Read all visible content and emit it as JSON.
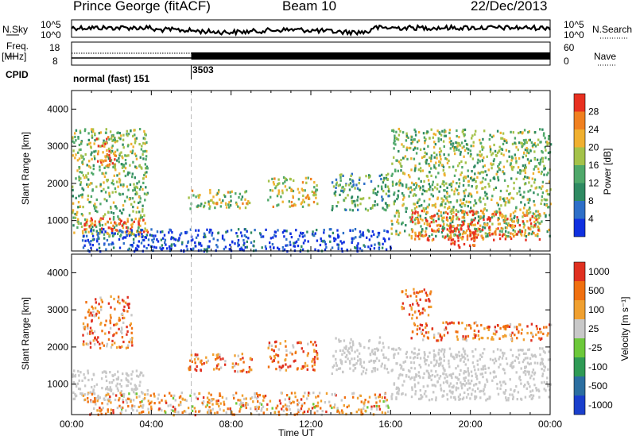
{
  "header": {
    "station": "Prince George (fitACF)",
    "beam": "Beam 10",
    "date": "22/Dec/2013"
  },
  "aux": {
    "nsky_label": "N.Sky",
    "nsky_ticks": [
      "10^5",
      "10^0"
    ],
    "nsearch_label": "N.Search",
    "freq_label": "Freq.",
    "freq_unit": "[MHz]",
    "freq_ticks": [
      "18",
      "8"
    ],
    "nave_label": "Nave",
    "nave_ticks": [
      "60",
      "0"
    ],
    "cpid_label": "CPID",
    "cpid_modes": [
      {
        "name": "normal (fast) 151",
        "start": "00:00",
        "end": "06:00"
      },
      {
        "name": "3503",
        "start": "06:00",
        "end": "24:00"
      }
    ]
  },
  "chart_data": [
    {
      "type": "heatmap",
      "title": "",
      "xlabel": "Time UT",
      "ylabel": "Slant Range [km]",
      "xlim": [
        0,
        24
      ],
      "ylim": [
        180,
        4500
      ],
      "x_ticks": [
        "00:00",
        "04:00",
        "08:00",
        "12:00",
        "16:00",
        "20:00",
        "00:00"
      ],
      "y_ticks": [
        1000,
        2000,
        3000,
        4000
      ],
      "colorbar": {
        "label": "Power [dB]",
        "ticks": [
          4,
          8,
          12,
          16,
          20,
          24,
          28
        ],
        "colors": [
          "#1030e0",
          "#2e6fc8",
          "#2f8a62",
          "#4fa86a",
          "#a4c24a",
          "#f0b030",
          "#f08020",
          "#e83020"
        ]
      },
      "echo_regions": [
        {
          "t0": 0.0,
          "t1": 3.8,
          "r0": 600,
          "r1": 3500,
          "level": 0.5
        },
        {
          "t0": 0.6,
          "t1": 3.8,
          "r0": 700,
          "r1": 1100,
          "level": 0.9
        },
        {
          "t0": 1.2,
          "t1": 2.2,
          "r0": 2500,
          "r1": 3300,
          "level": 0.8
        },
        {
          "t0": 0.5,
          "t1": 16.0,
          "r0": 200,
          "r1": 800,
          "level": 0.1
        },
        {
          "t0": 5.8,
          "t1": 9.0,
          "r0": 1350,
          "r1": 1850,
          "level": 0.55
        },
        {
          "t0": 9.8,
          "t1": 12.3,
          "r0": 1400,
          "r1": 2200,
          "level": 0.6
        },
        {
          "t0": 13.0,
          "t1": 15.9,
          "r0": 1300,
          "r1": 2300,
          "level": 0.4
        },
        {
          "t0": 16.0,
          "t1": 24.0,
          "r0": 600,
          "r1": 3500,
          "level": 0.5
        },
        {
          "t0": 17.0,
          "t1": 23.5,
          "r0": 500,
          "r1": 1300,
          "level": 0.85
        },
        {
          "t0": 18.8,
          "t1": 20.2,
          "r0": 300,
          "r1": 800,
          "level": 1.0
        }
      ]
    },
    {
      "type": "heatmap",
      "title": "",
      "xlabel": "Time UT",
      "ylabel": "Slant Range [km]",
      "xlim": [
        0,
        24
      ],
      "ylim": [
        180,
        4500
      ],
      "x_ticks": [
        "00:00",
        "04:00",
        "08:00",
        "12:00",
        "16:00",
        "20:00",
        "00:00"
      ],
      "y_ticks": [
        1000,
        2000,
        3000,
        4000
      ],
      "colorbar": {
        "label": "Velocity [m s⁻¹]",
        "ticks": [
          1000,
          500,
          100,
          25,
          -25,
          -100,
          -500,
          -1000
        ],
        "colors": [
          "#1a3fcc",
          "#2b6ea0",
          "#2f9a55",
          "#6cc83a",
          "#c8c8c8",
          "#f0a030",
          "#f07010",
          "#e03020"
        ]
      },
      "echo_regions": [
        {
          "t0": 0.0,
          "t1": 3.8,
          "r0": 600,
          "r1": 1400,
          "level": 0.5
        },
        {
          "t0": 0.5,
          "t1": 3.0,
          "r0": 2000,
          "r1": 3400,
          "level": 0.75
        },
        {
          "t0": 0.5,
          "t1": 16.0,
          "r0": 200,
          "r1": 800,
          "level": 0.7
        },
        {
          "t0": 5.8,
          "t1": 9.0,
          "r0": 1350,
          "r1": 1850,
          "level": 0.8
        },
        {
          "t0": 9.8,
          "t1": 12.3,
          "r0": 1400,
          "r1": 2200,
          "level": 0.8
        },
        {
          "t0": 13.0,
          "t1": 15.9,
          "r0": 1300,
          "r1": 2300,
          "level": 0.45
        },
        {
          "t0": 16.0,
          "t1": 24.0,
          "r0": 600,
          "r1": 2000,
          "level": 0.5
        },
        {
          "t0": 16.5,
          "t1": 18.0,
          "r0": 2800,
          "r1": 3600,
          "level": 0.85
        },
        {
          "t0": 17.0,
          "t1": 24.0,
          "r0": 2200,
          "r1": 2700,
          "level": 0.8
        }
      ]
    }
  ]
}
